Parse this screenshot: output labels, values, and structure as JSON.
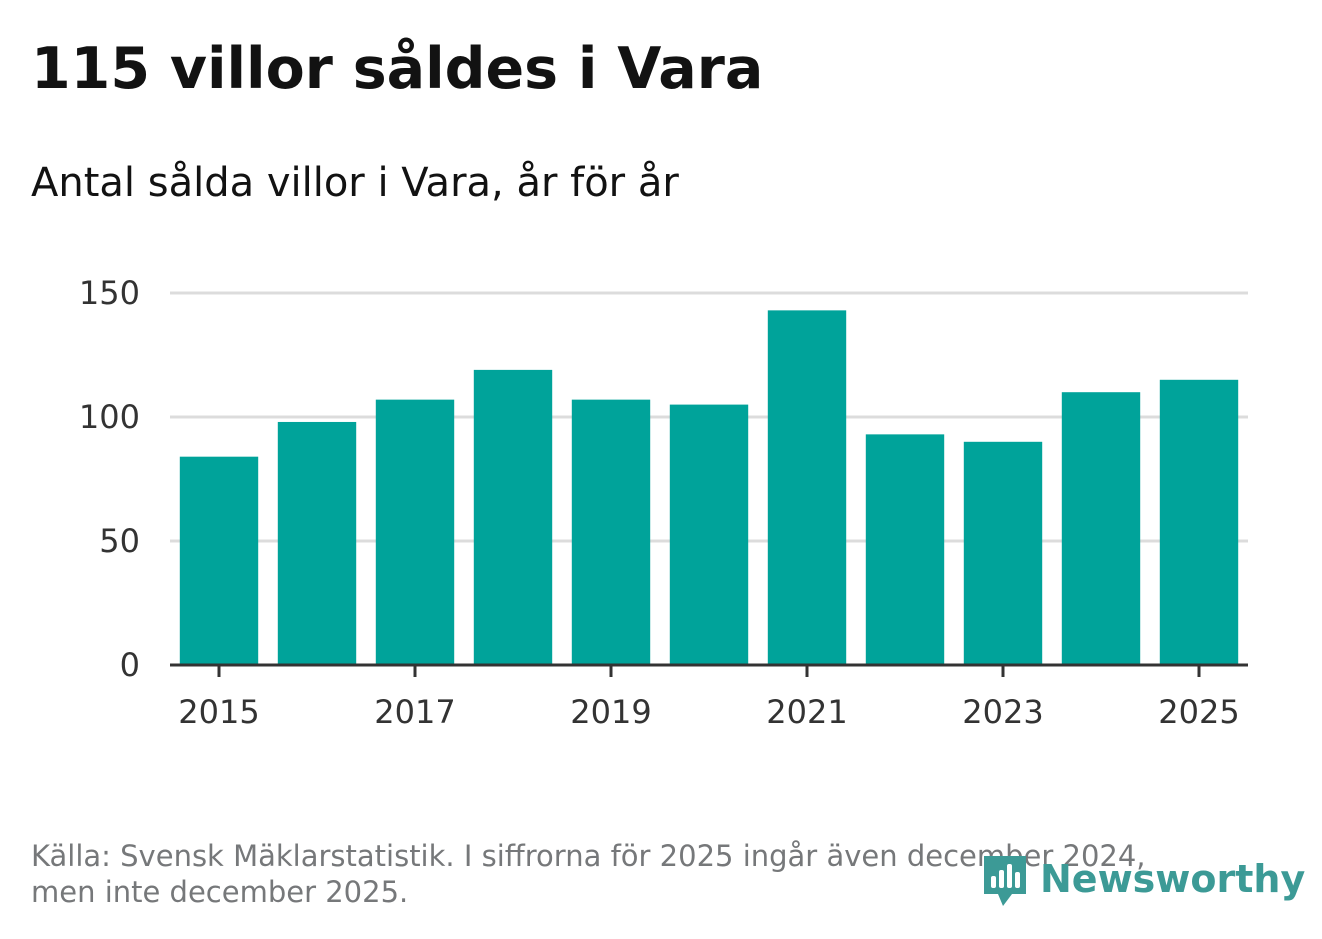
{
  "header": {
    "title": "115 villor såldes i Vara",
    "subtitle": "Antal sålda villor i Vara, år för år"
  },
  "chart_data": {
    "type": "bar",
    "title": "115 villor såldes i Vara",
    "subtitle": "Antal sålda villor i Vara, år för år",
    "xlabel": "",
    "ylabel": "",
    "categories": [
      "2015",
      "2016",
      "2017",
      "2018",
      "2019",
      "2020",
      "2021",
      "2022",
      "2023",
      "2024",
      "2025"
    ],
    "values": [
      84,
      98,
      107,
      119,
      107,
      105,
      143,
      93,
      90,
      110,
      115
    ],
    "x_tick_labels": [
      "2015",
      "2017",
      "2019",
      "2021",
      "2023",
      "2025"
    ],
    "y_ticks": [
      "0",
      "50",
      "100",
      "150"
    ],
    "ylim": [
      0,
      150
    ],
    "grid": "horizontal",
    "bar_color": "#00a39a"
  },
  "footer": {
    "source_line1": "Källa: Svensk Mäklarstatistik. I siffrorna för 2025 ingår även december 2024,",
    "source_line2": "men inte december 2025.",
    "logo_text": "Newsworthy",
    "logo_icon": "newsworthy-chart-bubble-icon",
    "logo_color": "#3c9a96"
  }
}
